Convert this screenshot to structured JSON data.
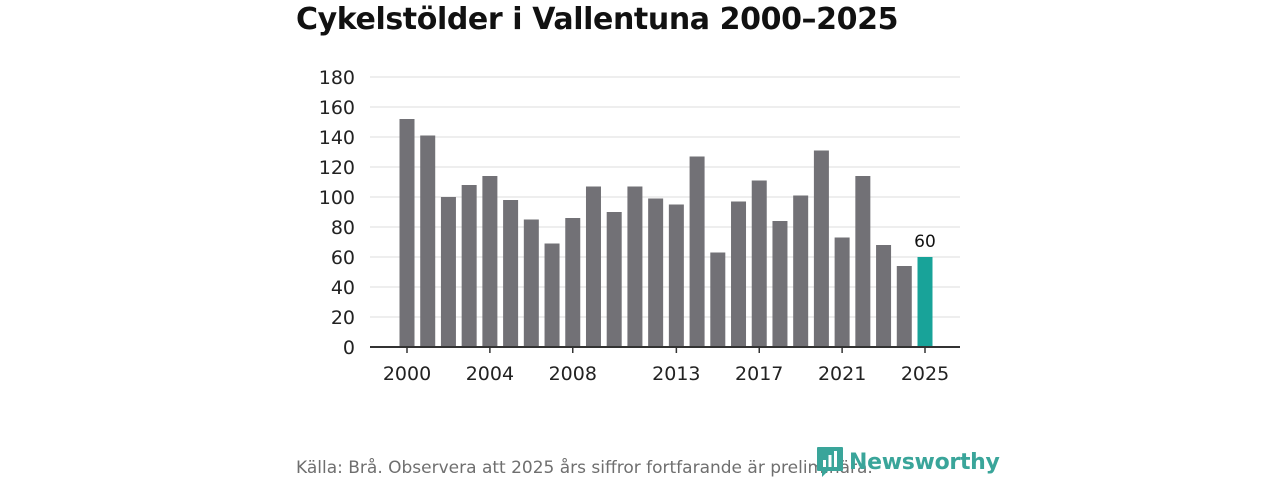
{
  "title": "Cykelstölder i Vallentuna 2000–2025",
  "source_note": "Källa: Brå. Observera att 2025 års siffror fortfarande är preliminära.",
  "brand": {
    "name": "Newsworthy",
    "icon": "bar-chart-badge-icon",
    "color": "#3aa59a"
  },
  "chart_data": {
    "type": "bar",
    "categories": [
      "2000",
      "2001",
      "2002",
      "2003",
      "2004",
      "2005",
      "2006",
      "2007",
      "2008",
      "2009",
      "2010",
      "2011",
      "2012",
      "2013",
      "2014",
      "2015",
      "2016",
      "2017",
      "2018",
      "2019",
      "2020",
      "2021",
      "2022",
      "2023",
      "2024",
      "2025"
    ],
    "values": [
      152,
      141,
      100,
      108,
      114,
      98,
      85,
      69,
      86,
      107,
      90,
      107,
      99,
      95,
      127,
      63,
      97,
      111,
      84,
      101,
      131,
      73,
      114,
      68,
      54,
      60
    ],
    "ylim": [
      0,
      180
    ],
    "yticks": [
      "0",
      "20",
      "40",
      "60",
      "80",
      "100",
      "120",
      "140",
      "160",
      "180"
    ],
    "xticks": [
      "2000",
      "2004",
      "2008",
      "2013",
      "2017",
      "2021",
      "2025"
    ],
    "highlight_category": "2025",
    "highlight_label": "60",
    "bar_color": "#727176",
    "highlight_color": "#18a399",
    "grid": true,
    "xlabel": "",
    "ylabel": ""
  }
}
